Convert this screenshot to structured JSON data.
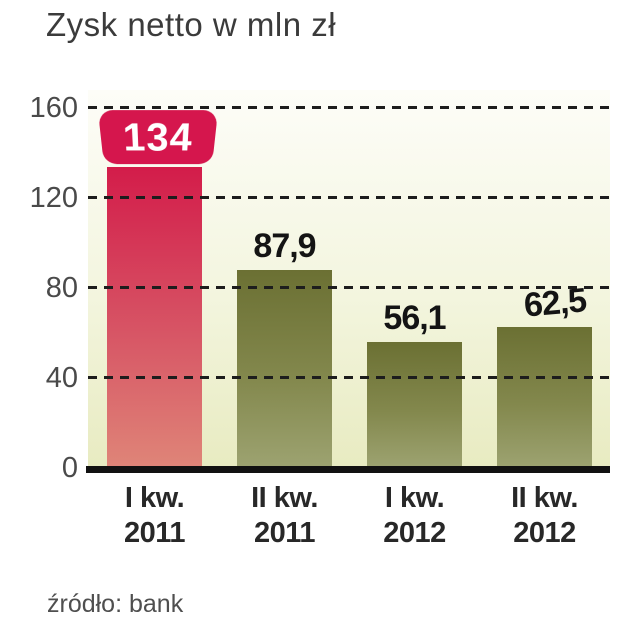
{
  "page": {
    "title": "Zysk netto w mln zł",
    "source": "źródło: bank"
  },
  "chart_data": {
    "type": "bar",
    "title": "Zysk netto w mln zł",
    "unit": "mln zł",
    "categories": [
      {
        "line1": "I kw.",
        "line2": "2011"
      },
      {
        "line1": "II kw.",
        "line2": "2011"
      },
      {
        "line1": "I kw.",
        "line2": "2012"
      },
      {
        "line1": "II kw.",
        "line2": "2012"
      }
    ],
    "values": [
      134,
      87.9,
      56.1,
      62.5
    ],
    "value_labels": [
      "134",
      "87,9",
      "56,1",
      "62,5"
    ],
    "ylim": [
      0,
      160
    ],
    "yticks": [
      0,
      40,
      80,
      120,
      160
    ],
    "grid": "horizontal-dashed",
    "legend": "none",
    "highlight_index": 0,
    "colors": {
      "highlight_bar_top": "#d31c4a",
      "highlight_bar_bottom": "#df8578",
      "bar_top": "#6b7033",
      "bar_bottom": "#9da371",
      "badge_fill": "#d5164d",
      "badge_text": "#ffffff",
      "plot_bg_top": "#fdfdf8",
      "plot_bg_bottom": "#e8ebc1",
      "grid_line": "#1d1d1d",
      "axis_line": "#111111",
      "value_label": "#141414",
      "tick_label": "#4a4a4a"
    }
  }
}
